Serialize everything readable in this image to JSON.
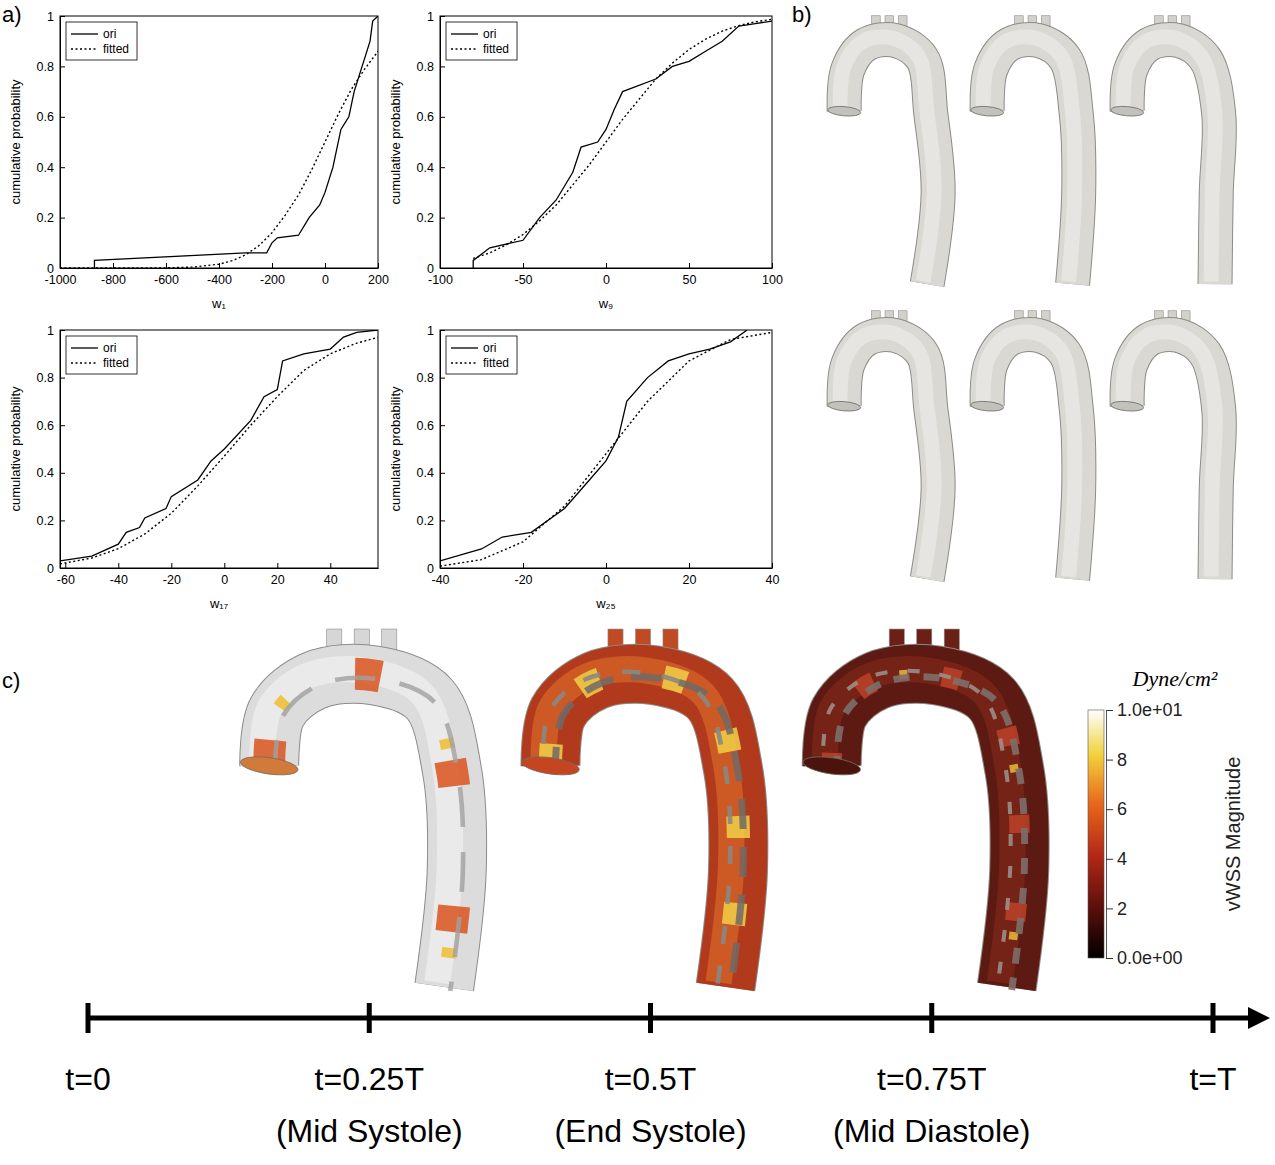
{
  "panel_labels": [
    "a)",
    "b)",
    "c)"
  ],
  "chart_data": [
    {
      "type": "line",
      "xlabel": "w₁",
      "ylabel": "cumulative probability",
      "xlim": [
        -1000,
        200
      ],
      "xticks": [
        -1000,
        -800,
        -600,
        -400,
        -200,
        0,
        200
      ],
      "ylim": [
        0,
        1
      ],
      "yticks": [
        0,
        0.2,
        0.4,
        0.6,
        0.8,
        1
      ],
      "grid": false,
      "legend": "top-left",
      "series": [
        {
          "name": "ori",
          "color": "#000000",
          "line_style": "solid",
          "x": [
            -870,
            -870,
            -300,
            -220,
            -200,
            -180,
            -100,
            -60,
            -20,
            0,
            30,
            60,
            90,
            110,
            140,
            170,
            180,
            200
          ],
          "values": [
            0,
            0.03,
            0.06,
            0.06,
            0.1,
            0.12,
            0.13,
            0.2,
            0.25,
            0.3,
            0.4,
            0.55,
            0.6,
            0.7,
            0.8,
            0.9,
            0.98,
            1
          ]
        },
        {
          "name": "fitted",
          "color": "#000000",
          "line_style": "dotted",
          "x": [
            -1000,
            -900,
            -800,
            -700,
            -600,
            -500,
            -400,
            -350,
            -300,
            -250,
            -200,
            -150,
            -100,
            -50,
            0,
            50,
            100,
            150,
            200
          ],
          "values": [
            0,
            0,
            0,
            0.0001,
            0.0006,
            0.0035,
            0.015,
            0.029,
            0.052,
            0.088,
            0.14,
            0.21,
            0.29,
            0.39,
            0.5,
            0.61,
            0.71,
            0.79,
            0.86
          ]
        }
      ]
    },
    {
      "type": "line",
      "xlabel": "w₉",
      "ylabel": "cumulative probability",
      "xlim": [
        -100,
        100
      ],
      "xticks": [
        -100,
        -50,
        0,
        50,
        100
      ],
      "ylim": [
        0,
        1
      ],
      "yticks": [
        0,
        0.2,
        0.4,
        0.6,
        0.8,
        1
      ],
      "grid": false,
      "legend": "top-left",
      "series": [
        {
          "name": "ori",
          "color": "#000000",
          "line_style": "solid",
          "x": [
            -80,
            -80,
            -70,
            -50,
            -40,
            -30,
            -20,
            -15,
            -5,
            0,
            5,
            10,
            30,
            40,
            50,
            60,
            70,
            80,
            90,
            100
          ],
          "values": [
            0,
            0.03,
            0.08,
            0.11,
            0.2,
            0.27,
            0.38,
            0.48,
            0.5,
            0.55,
            0.63,
            0.7,
            0.75,
            0.8,
            0.82,
            0.86,
            0.9,
            0.96,
            0.97,
            0.98
          ]
        },
        {
          "name": "fitted",
          "color": "#000000",
          "line_style": "dotted",
          "x": [
            -80,
            -70,
            -60,
            -50,
            -40,
            -30,
            -20,
            -10,
            0,
            10,
            20,
            30,
            40,
            50,
            60,
            70,
            80,
            90,
            100
          ],
          "values": [
            0.038,
            0.06,
            0.092,
            0.133,
            0.187,
            0.25,
            0.33,
            0.41,
            0.5,
            0.59,
            0.67,
            0.75,
            0.813,
            0.867,
            0.908,
            0.94,
            0.962,
            0.977,
            0.987
          ]
        }
      ]
    },
    {
      "type": "line",
      "xlabel": "w₁₇",
      "ylabel": "cumulative probability",
      "xlim": [
        -62,
        58
      ],
      "xticks": [
        -60,
        -40,
        -20,
        0,
        20,
        40
      ],
      "ylim": [
        0,
        1
      ],
      "yticks": [
        0,
        0.2,
        0.4,
        0.6,
        0.8,
        1
      ],
      "grid": false,
      "legend": "top-left",
      "series": [
        {
          "name": "ori",
          "color": "#000000",
          "line_style": "solid",
          "x": [
            -62,
            -50,
            -40,
            -37,
            -32,
            -30,
            -22,
            -20,
            -10,
            -5,
            0,
            10,
            15,
            20,
            22,
            30,
            40,
            45,
            50,
            58
          ],
          "values": [
            0.03,
            0.05,
            0.1,
            0.15,
            0.17,
            0.21,
            0.25,
            0.3,
            0.37,
            0.45,
            0.5,
            0.62,
            0.72,
            0.75,
            0.87,
            0.9,
            0.92,
            0.97,
            0.99,
            1
          ]
        },
        {
          "name": "fitted",
          "color": "#000000",
          "line_style": "dotted",
          "x": [
            -62,
            -50,
            -40,
            -30,
            -20,
            -10,
            0,
            10,
            20,
            30,
            40,
            50,
            58
          ],
          "values": [
            0.017,
            0.042,
            0.081,
            0.143,
            0.23,
            0.345,
            0.47,
            0.6,
            0.72,
            0.83,
            0.9,
            0.945,
            0.969
          ]
        }
      ]
    },
    {
      "type": "line",
      "xlabel": "w₂₅",
      "ylabel": "cumulative probability",
      "xlim": [
        -40,
        40
      ],
      "xticks": [
        -40,
        -20,
        0,
        20,
        40
      ],
      "ylim": [
        0,
        1
      ],
      "yticks": [
        0,
        0.2,
        0.4,
        0.6,
        0.8,
        1
      ],
      "grid": false,
      "legend": "top-left",
      "series": [
        {
          "name": "ori",
          "color": "#000000",
          "line_style": "solid",
          "x": [
            -40,
            -40,
            -30,
            -25,
            -18,
            -10,
            -5,
            0,
            3,
            5,
            10,
            15,
            20,
            25,
            30,
            34
          ],
          "values": [
            0,
            0.03,
            0.08,
            0.13,
            0.15,
            0.25,
            0.35,
            0.45,
            0.55,
            0.7,
            0.8,
            0.87,
            0.9,
            0.92,
            0.95,
            1
          ]
        },
        {
          "name": "fitted",
          "color": "#000000",
          "line_style": "dotted",
          "x": [
            -40,
            -30,
            -20,
            -10,
            0,
            10,
            20,
            30,
            40
          ],
          "values": [
            0.008,
            0.035,
            0.11,
            0.26,
            0.48,
            0.7,
            0.87,
            0.96,
            0.99
          ]
        }
      ]
    }
  ],
  "colorbar": {
    "title": "Dyne/cm²",
    "label": "vWSS Magnitude",
    "range": [
      0,
      10
    ],
    "ticks": [
      {
        "value": 0,
        "label": "0.0e+00"
      },
      2,
      4,
      6,
      8,
      {
        "value": 10,
        "label": "1.0e+01"
      }
    ]
  },
  "timeline": {
    "range": [
      0,
      1
    ],
    "ticks": [
      {
        "value": 0,
        "label": "t=0"
      },
      {
        "value": 0.25,
        "label": "t=0.25T",
        "phase": "(Mid Systole)"
      },
      {
        "value": 0.5,
        "label": "t=0.5T",
        "phase": "(End Systole)"
      },
      {
        "value": 0.75,
        "label": "t=0.75T",
        "phase": "(Mid Diastole)"
      },
      {
        "value": 1,
        "label": "t=T"
      }
    ]
  }
}
